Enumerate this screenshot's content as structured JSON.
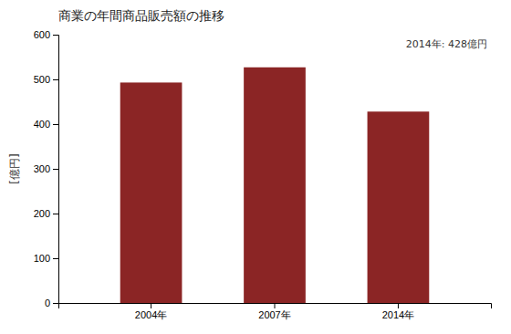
{
  "chart_data": {
    "type": "bar",
    "title": "商業の年間商品販売額の推移",
    "ylabel": "[億円]",
    "categories": [
      "2004年",
      "2007年",
      "2014年"
    ],
    "values": [
      493,
      527,
      428
    ],
    "color": "#8B2525",
    "ylim": [
      0,
      600
    ],
    "yticks": [
      0,
      100,
      200,
      300,
      400,
      500,
      600
    ],
    "grid": false,
    "annotation": "2014年: 428億円"
  }
}
